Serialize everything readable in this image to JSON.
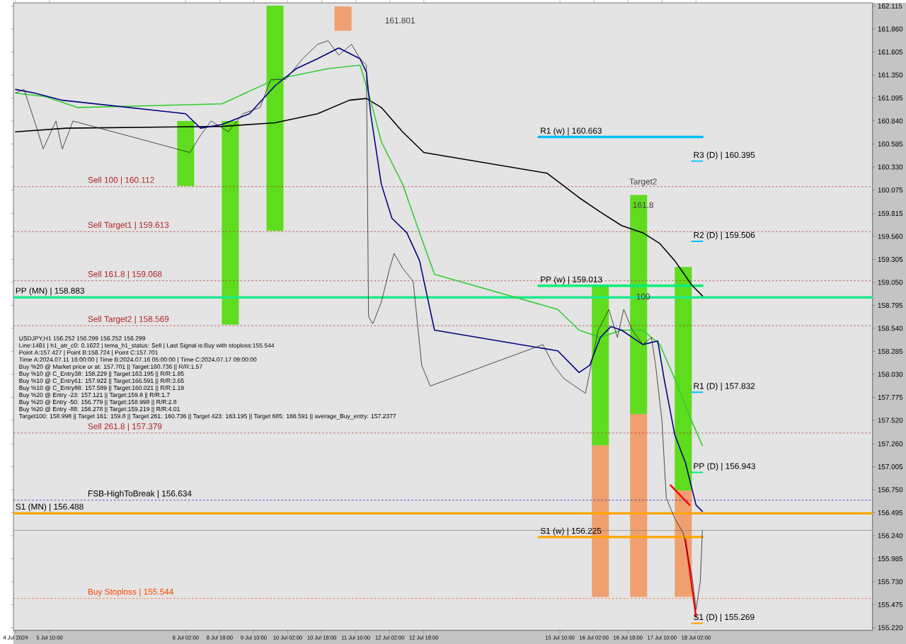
{
  "chart_data": {
    "type": "line",
    "annotations": [
      "USDJPY,H1  156.252 156.299 156.252 156.299",
      "Line:1481 | h1_atr_c0: 0.1622 | tema_h1_status: Sell | Last Signal is:Buy with stoploss:155.544",
      "Point A:157.427 | Point B:158.724 | Point C:157.701",
      "Time A:2024.07.11 16:00:00 | Time B:2024.07.16 05:00:00 | Time C:2024.07.17 09:00:00",
      "Buy %20 @ Market price or at: 157.701 || Target:160.736 || R/R:1.57",
      "Buy %10 @ C_Entry38: 158.229 || Target:163.195 || R/R:1.85",
      "Buy %10 @ C_Entry61: 157.922 || Target:166.591 || R/R:3.65",
      "Buy %10 @ C_Entry88: 157.589 || Target:160.021 || R/R:1.19",
      "Buy %20 @ Entry -23: 157.121 || Target:159.8 || R/R:1.7",
      "Buy %20 @ Entry -50: 156.779 || Target:158.998 || R/R:2.8",
      "Buy %20 @ Entry -88: 156.278 || Target:159.219 || R/R:4.01",
      "Target100: 158.998 || Target 161: 159.8 || Target 261: 160.736 || Target 423: 163.195 || Target 685: 166.591 || average_Buy_entry: 157.2377",
      "161.801",
      "Target2",
      "161.8",
      "100"
    ],
    "xlim": [
      "2024-07-04T17:00",
      "2024-07-21T13:00"
    ],
    "ylim": [
      155.19,
      162.15
    ],
    "xticks": [
      {
        "value": "2024-07-04T18:00",
        "label": "4 Jul 2024"
      },
      {
        "value": "2024-07-05T10:00",
        "label": "5 Jul 10:00"
      },
      {
        "value": "2024-07-08T02:00",
        "label": "8 Jul 02:00"
      },
      {
        "value": "2024-07-08T18:00",
        "label": "8 Jul 18:00"
      },
      {
        "value": "2024-07-09T10:00",
        "label": "9 Jul 10:00"
      },
      {
        "value": "2024-07-10T02:00",
        "label": "10 Jul 02:00"
      },
      {
        "value": "2024-07-10T18:00",
        "label": "10 Jul 18:00"
      },
      {
        "value": "2024-07-11T10:00",
        "label": "11 Jul 10:00"
      },
      {
        "value": "2024-07-12T02:00",
        "label": "12 Jul 02:00"
      },
      {
        "value": "2024-07-12T18:00",
        "label": "12 Jul 18:00"
      },
      {
        "value": "2024-07-15T10:00",
        "label": "15 Jul 10:00"
      },
      {
        "value": "2024-07-16T02:00",
        "label": "16 Jul 02:00"
      },
      {
        "value": "2024-07-16T18:00",
        "label": "16 Jul 18:00"
      },
      {
        "value": "2024-07-17T10:00",
        "label": "17 Jul 10:00"
      },
      {
        "value": "2024-07-18T02:00",
        "label": "18 Jul 02:00"
      }
    ],
    "yticks": [
      {
        "value": 162.115,
        "label": "162.115"
      },
      {
        "value": 161.86,
        "label": "161.860"
      },
      {
        "value": 161.605,
        "label": "161.605"
      },
      {
        "value": 161.35,
        "label": "161.350"
      },
      {
        "value": 161.095,
        "label": "161.095"
      },
      {
        "value": 160.84,
        "label": "160.840"
      },
      {
        "value": 160.585,
        "label": "160.585"
      },
      {
        "value": 160.33,
        "label": "160.330"
      },
      {
        "value": 160.075,
        "label": "160.075"
      },
      {
        "value": 159.815,
        "label": "159.815"
      },
      {
        "value": 159.56,
        "label": "159.560"
      },
      {
        "value": 159.305,
        "label": "159.305"
      },
      {
        "value": 159.05,
        "label": "159.050"
      },
      {
        "value": 158.795,
        "label": "158.795"
      },
      {
        "value": 158.54,
        "label": "158.540"
      },
      {
        "value": 158.285,
        "label": "158.285"
      },
      {
        "value": 158.03,
        "label": "158.030"
      },
      {
        "value": 157.775,
        "label": "157.775"
      },
      {
        "value": 157.52,
        "label": "157.520"
      },
      {
        "value": 157.26,
        "label": "157.260"
      },
      {
        "value": 157.005,
        "label": "157.005"
      },
      {
        "value": 156.75,
        "label": "156.750"
      },
      {
        "value": 156.495,
        "label": "156.495"
      },
      {
        "value": 156.24,
        "label": "156.240"
      },
      {
        "value": 155.985,
        "label": "155.985"
      },
      {
        "value": 155.73,
        "label": "155.730"
      },
      {
        "value": 155.475,
        "label": "155.475"
      },
      {
        "value": 155.22,
        "label": "155.220"
      }
    ],
    "ref_lines": [
      {
        "axis": "y",
        "value": 160.112,
        "label": "Sell 100 | 160.112",
        "color": "#b22222",
        "line_style": "dashed"
      },
      {
        "axis": "y",
        "value": 159.613,
        "label": "Sell Target1 | 159.613",
        "color": "#b22222",
        "line_style": "dashed"
      },
      {
        "axis": "y",
        "value": 159.068,
        "label": "Sell 161.8 | 159.068",
        "color": "#b22222",
        "line_style": "dashed"
      },
      {
        "axis": "y",
        "value": 158.569,
        "label": "Sell Target2 | 158.569",
        "color": "#b22222",
        "line_style": "dashed"
      },
      {
        "axis": "y",
        "value": 157.379,
        "label": "Sell 261.8 | 157.379",
        "color": "#b22222",
        "line_style": "dashed"
      },
      {
        "axis": "y",
        "value": 156.634,
        "label": "FSB-HighToBreak | 156.634",
        "color": "#0000cc",
        "line_style": "dashed"
      },
      {
        "axis": "y",
        "value": 155.544,
        "label": "Buy Stoploss | 155.544",
        "color": "#ff4500",
        "line_style": "dashed"
      },
      {
        "axis": "y",
        "value": 156.299,
        "color": "#808080",
        "line_style": "solid"
      },
      {
        "axis": "y",
        "value": 158.883,
        "label": "PP (MN) | 158.883",
        "color": "#1de98b",
        "line_style": "solid"
      },
      {
        "axis": "y",
        "value": 156.488,
        "label": "S1 (MN) | 156.488",
        "color": "#ffa500",
        "line_style": "solid"
      }
    ],
    "series": [
      {
        "type": "bar",
        "color": "#5fdc1e",
        "x": [
          "2024-07-08T02:00",
          "2024-07-08T23:00",
          "2024-07-09T20:00",
          "2024-07-16T05:00",
          "2024-07-16T23:00",
          "2024-07-17T20:00"
        ],
        "base": [
          160.12,
          158.58,
          159.62,
          157.24,
          157.59,
          156.74
        ],
        "values": [
          0.72,
          2.26,
          2.5,
          1.78,
          2.43,
          2.48
        ]
      },
      {
        "type": "bar",
        "color": "#f0a070",
        "x": [
          "2024-07-11T04:00",
          "2024-07-16T05:00",
          "2024-07-16T23:00",
          "2024-07-17T20:00"
        ],
        "base": [
          161.84,
          155.56,
          155.56,
          155.56
        ],
        "values": [
          0.27,
          1.68,
          2.03,
          1.18
        ]
      },
      {
        "color": "#222222",
        "x": [
          "2024-07-04T18:00",
          "2024-07-04T22:00",
          "2024-07-05T04:00",
          "2024-07-05T07:00",
          "2024-07-05T13:00",
          "2024-07-05T16:00",
          "2024-07-05T21:00",
          "2024-07-08T04:00",
          "2024-07-08T09:00",
          "2024-07-08T14:00",
          "2024-07-08T22:00",
          "2024-07-09T05:00",
          "2024-07-09T13:00",
          "2024-07-09T18:00",
          "2024-07-10T01:00",
          "2024-07-10T09:00",
          "2024-07-10T16:00",
          "2024-07-10T21:00",
          "2024-07-11T02:00",
          "2024-07-11T08:00",
          "2024-07-11T12:00",
          "2024-07-11T15:00",
          "2024-07-11T16:00",
          "2024-07-11T18:00",
          "2024-07-11T22:00",
          "2024-07-12T02:00",
          "2024-07-12T04:00",
          "2024-07-12T08:00",
          "2024-07-12T13:00",
          "2024-07-12T17:00",
          "2024-07-12T21:00",
          "2024-07-15T02:00",
          "2024-07-15T07:00",
          "2024-07-15T12:00",
          "2024-07-15T17:00",
          "2024-07-15T22:00",
          "2024-07-16T00:00",
          "2024-07-16T04:00",
          "2024-07-16T09:00",
          "2024-07-16T13:00",
          "2024-07-16T16:00",
          "2024-07-16T20:00",
          "2024-07-17T01:00",
          "2024-07-17T05:00",
          "2024-07-17T07:00",
          "2024-07-17T10:00",
          "2024-07-17T12:00",
          "2024-07-17T16:00",
          "2024-07-17T20:00",
          "2024-07-18T00:00",
          "2024-07-18T02:00",
          "2024-07-18T04:00",
          "2024-07-18T05:00"
        ],
        "values": [
          161.15,
          161.19,
          160.76,
          160.53,
          160.84,
          160.53,
          160.84,
          160.49,
          160.68,
          160.84,
          160.72,
          160.92,
          160.99,
          161.3,
          161.3,
          161.53,
          161.69,
          161.73,
          161.57,
          161.69,
          161.53,
          161.46,
          158.67,
          158.59,
          158.83,
          159.21,
          159.37,
          159.21,
          159.06,
          158.13,
          157.9,
          158.36,
          158.13,
          157.98,
          157.9,
          157.82,
          158.05,
          158.52,
          158.75,
          158.44,
          158.75,
          158.52,
          158.36,
          158.44,
          158.13,
          157.51,
          156.66,
          156.43,
          156.27,
          155.81,
          155.42,
          155.73,
          156.3
        ]
      },
      {
        "color": "#000000",
        "x": [
          "2024-07-04T18:00",
          "2024-07-05T18:00",
          "2024-07-08T19:00",
          "2024-07-09T20:00",
          "2024-07-10T16:00",
          "2024-07-11T07:00",
          "2024-07-11T15:00",
          "2024-07-11T22:00",
          "2024-07-12T08:00",
          "2024-07-12T18:00",
          "2024-07-15T04:00",
          "2024-07-15T19:00",
          "2024-07-16T05:00",
          "2024-07-16T15:00",
          "2024-07-17T01:00",
          "2024-07-17T09:00",
          "2024-07-17T16:00",
          "2024-07-18T00:00",
          "2024-07-18T05:00"
        ],
        "values": [
          160.72,
          160.76,
          160.78,
          160.82,
          160.92,
          161.07,
          161.09,
          160.99,
          160.72,
          160.49,
          160.26,
          159.99,
          159.83,
          159.68,
          159.6,
          159.48,
          159.29,
          159.02,
          158.9
        ]
      },
      {
        "color": "#33cc33",
        "x": [
          "2024-07-04T18:00",
          "2024-07-05T08:00",
          "2024-07-05T23:00",
          "2024-07-08T19:00",
          "2024-07-09T20:00",
          "2024-07-10T21:00",
          "2024-07-11T12:00",
          "2024-07-11T17:00",
          "2024-07-11T22:00",
          "2024-07-12T08:00",
          "2024-07-12T16:00",
          "2024-07-12T23:00",
          "2024-07-15T09:00",
          "2024-07-15T19:00",
          "2024-07-16T05:00",
          "2024-07-16T15:00",
          "2024-07-17T01:00",
          "2024-07-17T09:00",
          "2024-07-17T16:00",
          "2024-07-18T00:00",
          "2024-07-18T05:00"
        ],
        "values": [
          161.15,
          161.11,
          160.99,
          161.03,
          161.3,
          161.42,
          161.46,
          161.07,
          160.61,
          160.14,
          159.6,
          159.14,
          158.75,
          158.52,
          158.44,
          158.52,
          158.52,
          158.36,
          157.98,
          157.51,
          157.24
        ]
      },
      {
        "color": "#000080",
        "x": [
          "2024-07-04T18:00",
          "2024-07-05T03:00",
          "2024-07-05T16:00",
          "2024-07-08T02:00",
          "2024-07-08T09:00",
          "2024-07-08T19:00",
          "2024-07-09T08:00",
          "2024-07-09T20:00",
          "2024-07-10T06:00",
          "2024-07-10T16:00",
          "2024-07-11T02:00",
          "2024-07-11T12:00",
          "2024-07-11T15:00",
          "2024-07-11T17:00",
          "2024-07-11T22:00",
          "2024-07-12T03:00",
          "2024-07-12T10:00",
          "2024-07-12T16:00",
          "2024-07-12T23:00",
          "2024-07-15T09:00",
          "2024-07-15T19:00",
          "2024-07-16T00:00",
          "2024-07-16T05:00",
          "2024-07-16T10:00",
          "2024-07-16T15:00",
          "2024-07-17T01:00",
          "2024-07-17T08:00",
          "2024-07-17T11:00",
          "2024-07-17T16:00",
          "2024-07-17T21:00",
          "2024-07-18T02:00",
          "2024-07-18T05:00"
        ],
        "values": [
          161.19,
          161.15,
          161.07,
          160.92,
          160.76,
          160.8,
          160.92,
          161.23,
          161.42,
          161.53,
          161.65,
          161.53,
          161.38,
          160.92,
          160.14,
          159.76,
          159.6,
          159.29,
          158.52,
          158.29,
          158.05,
          158.13,
          158.44,
          158.56,
          158.52,
          158.36,
          158.4,
          157.98,
          157.36,
          157.05,
          156.58,
          156.51
        ]
      },
      {
        "color": "#ff0000",
        "x": [
          "2024-07-17T14:00",
          "2024-07-17T23:00"
        ],
        "values": [
          156.8,
          156.58
        ]
      },
      {
        "color": "#ff0000",
        "x": [
          "2024-07-17T21:00",
          "2024-07-18T02:00"
        ],
        "values": [
          156.2,
          155.34
        ]
      },
      {
        "name": "R1 (w) | 160.663",
        "color": "#00bfff",
        "x": [
          "2024-07-15T00:00",
          "2024-07-18T05:00"
        ],
        "values": [
          160.663,
          160.663
        ]
      },
      {
        "name": "PP (w) | 159.013",
        "color": "#00ee77",
        "x": [
          "2024-07-15T00:00",
          "2024-07-18T05:00"
        ],
        "values": [
          159.013,
          159.013
        ]
      },
      {
        "name": "S1 (w) | 156.225",
        "color": "#ffa500",
        "x": [
          "2024-07-15T00:00",
          "2024-07-18T05:00"
        ],
        "values": [
          156.225,
          156.225
        ]
      },
      {
        "name": "R3 (D) | 160.395",
        "color": "#00bfff",
        "x": [
          "2024-07-18T00:00",
          "2024-07-18T05:00"
        ],
        "values": [
          160.395,
          160.395
        ]
      },
      {
        "name": "R2 (D) | 159.506",
        "color": "#00bfff",
        "x": [
          "2024-07-18T00:00",
          "2024-07-18T05:00"
        ],
        "values": [
          159.506,
          159.506
        ]
      },
      {
        "name": "R1 (D) | 157.832",
        "color": "#00bfff",
        "x": [
          "2024-07-18T00:00",
          "2024-07-18T05:00"
        ],
        "values": [
          157.832,
          157.832
        ]
      },
      {
        "name": "PP (D) | 156.943",
        "color": "#00ee77",
        "x": [
          "2024-07-18T00:00",
          "2024-07-18T05:00"
        ],
        "values": [
          156.943,
          156.943
        ]
      },
      {
        "name": "S1 (D) | 155.269",
        "color": "#ffa500",
        "x": [
          "2024-07-18T00:00",
          "2024-07-18T05:00"
        ],
        "values": [
          155.269,
          155.269
        ]
      }
    ]
  }
}
